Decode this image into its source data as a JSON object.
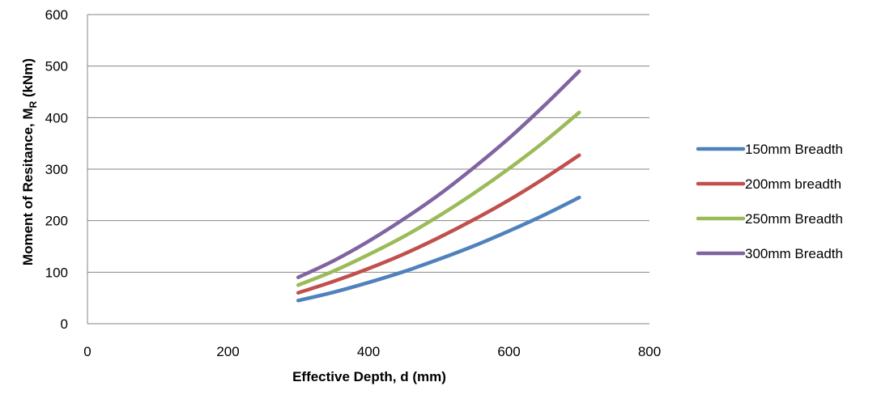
{
  "chart_data": {
    "type": "line",
    "xlabel": "Effective Depth, d (mm)",
    "ylabel": {
      "prefix": "Moment of Resitance, M",
      "subscript": "R",
      "suffix": " (kNm)"
    },
    "xlim": [
      0,
      800
    ],
    "ylim": [
      0,
      600
    ],
    "xticks": [
      0,
      200,
      400,
      600,
      800
    ],
    "yticks": [
      0,
      100,
      200,
      300,
      400,
      500,
      600
    ],
    "grid": "horizontal",
    "legend_position": "right",
    "x": [
      300,
      350,
      400,
      450,
      500,
      550,
      600,
      650,
      700
    ],
    "series": [
      {
        "name": "150mm Breadth",
        "color": "#4f81bd",
        "values": [
          45,
          61,
          80,
          101,
          125,
          151,
          180,
          211,
          245
        ]
      },
      {
        "name": "200mm breadth",
        "color": "#c0504d",
        "values": [
          60,
          82,
          107,
          135,
          167,
          202,
          240,
          282,
          327
        ]
      },
      {
        "name": "250mm Breadth",
        "color": "#9bbb59",
        "values": [
          75,
          102,
          134,
          169,
          209,
          253,
          301,
          353,
          410
        ]
      },
      {
        "name": "300mm Breadth",
        "color": "#8064a2",
        "values": [
          90,
          122,
          160,
          203,
          250,
          303,
          360,
          423,
          490
        ]
      }
    ]
  }
}
